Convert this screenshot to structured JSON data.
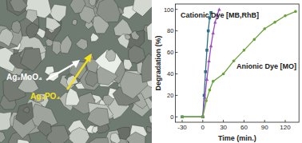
{
  "chart_data": {
    "type": "line",
    "x_label": "Time (min.)",
    "y_label": "Degradation (%)",
    "annotations": [
      "Cationic Dye [MB,RhB]",
      "Anionic Dye [MO]"
    ],
    "annotation_colors": [
      "#1a1a1a",
      "#1a1a1a"
    ],
    "xlim": [
      -40,
      140
    ],
    "xticks": [
      -30,
      0,
      30,
      60,
      90,
      120
    ],
    "ylim": [
      -5,
      105
    ],
    "yticks": [
      0,
      20,
      40,
      60,
      80,
      100
    ],
    "grid": false,
    "series": [
      {
        "color": "#2e6f86",
        "marker": "square",
        "line_style": "solid",
        "x": [
          -30,
          0,
          2,
          4,
          6,
          8,
          10,
          12
        ],
        "values": [
          0,
          0,
          20,
          42,
          62,
          80,
          92,
          97
        ]
      },
      {
        "color": "#9b4fc4",
        "marker": "triangle",
        "line_style": "solid",
        "x": [
          0,
          3,
          6,
          9,
          12,
          15,
          18,
          21,
          24
        ],
        "values": [
          0,
          18,
          35,
          52,
          66,
          78,
          88,
          95,
          100
        ]
      },
      {
        "color": "#6aa33a",
        "marker": "circle",
        "line_style": "solid",
        "x": [
          -30,
          0,
          5,
          10,
          15,
          30,
          45,
          60,
          75,
          90,
          105,
          120,
          135
        ],
        "values": [
          0,
          0,
          15,
          25,
          33,
          40,
          52,
          62,
          72,
          82,
          88,
          94,
          98
        ]
      }
    ]
  },
  "micrograph": {
    "labels": [
      "Ag₂MoO₄",
      "Ag₃PO₄"
    ],
    "label_colors": [
      "#ffffff",
      "#f5e11a"
    ]
  }
}
